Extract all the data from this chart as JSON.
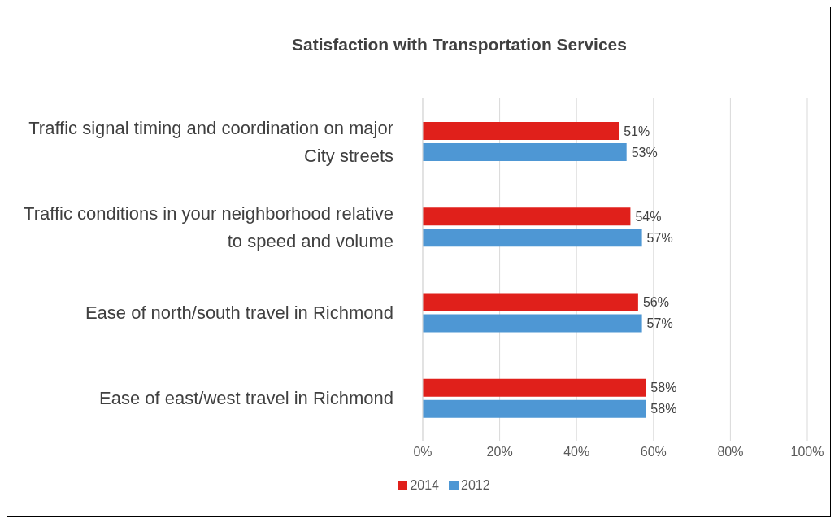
{
  "chart_data": {
    "type": "bar",
    "orientation": "horizontal",
    "title": "Satisfaction with Transportation Services",
    "categories": [
      "Traffic signal timing and coordination on major City streets",
      "Traffic conditions in your neighborhood relative to speed and volume",
      "Ease of north/south travel in Richmond",
      "Ease of east/west travel in Richmond"
    ],
    "series": [
      {
        "name": "2014",
        "color": "#e0201b",
        "values": [
          51,
          54,
          56,
          58
        ],
        "value_labels": [
          "51%",
          "54%",
          "56%",
          "58%"
        ]
      },
      {
        "name": "2012",
        "color": "#4e97d4",
        "values": [
          53,
          57,
          57,
          58
        ],
        "value_labels": [
          "53%",
          "57%",
          "57%",
          "58%"
        ]
      }
    ],
    "xlim": [
      0,
      100
    ],
    "xticks": [
      {
        "value": 0,
        "label": "0%"
      },
      {
        "value": 20,
        "label": "20%"
      },
      {
        "value": 40,
        "label": "40%"
      },
      {
        "value": 60,
        "label": "60%"
      },
      {
        "value": 80,
        "label": "80%"
      },
      {
        "value": 100,
        "label": "100%"
      }
    ],
    "grid": "x",
    "legend": "bottom"
  }
}
